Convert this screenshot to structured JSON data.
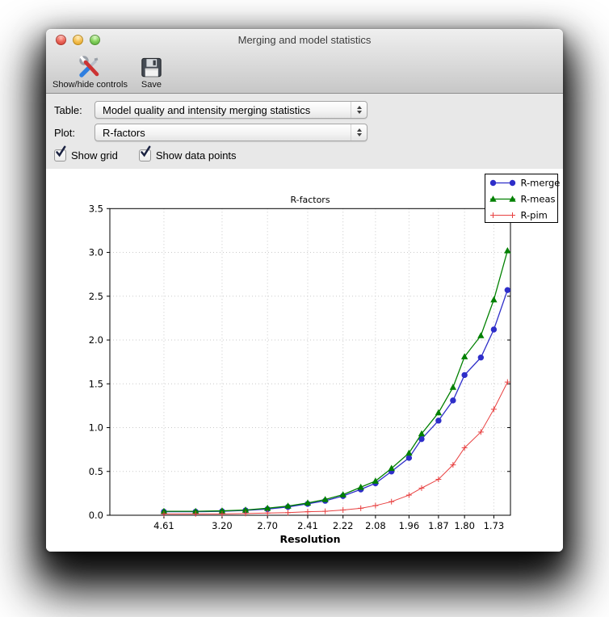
{
  "window": {
    "title": "Merging and model statistics"
  },
  "toolbar": {
    "buttons": [
      {
        "label": "Show/hide controls",
        "icon": "tools-icon"
      },
      {
        "label": "Save",
        "icon": "save-floppy-icon"
      }
    ]
  },
  "controls": {
    "table_label": "Table:",
    "table_value": "Model quality and intensity merging statistics",
    "plot_label": "Plot:",
    "plot_value": "R-factors",
    "checkboxes": [
      {
        "label": "Show grid",
        "checked": true
      },
      {
        "label": "Show data points",
        "checked": true
      }
    ]
  },
  "chart_data": {
    "type": "line",
    "title": "R-factors",
    "xlabel": "Resolution",
    "ylabel": "",
    "ylim": [
      0,
      3.5
    ],
    "yticks": [
      0.0,
      0.5,
      1.0,
      1.5,
      2.0,
      2.5,
      3.0,
      3.5
    ],
    "x_axis_scale": "1/d^2",
    "x_range_inv_d2": [
      0,
      0.3486
    ],
    "resolution_bins_d": [
      4.61,
      3.66,
      3.2,
      2.91,
      2.7,
      2.54,
      2.41,
      2.31,
      2.22,
      2.14,
      2.08,
      2.02,
      1.96,
      1.92,
      1.87,
      1.83,
      1.8,
      1.76,
      1.73,
      1.7
    ],
    "xtick_labels": [
      "4.61",
      "3.20",
      "2.70",
      "2.41",
      "2.22",
      "2.08",
      "1.96",
      "1.87",
      "1.80",
      "1.73"
    ],
    "grid": true,
    "show_data_points": true,
    "grid_color": "#c9c9c9",
    "legend_position": "upper right",
    "series": [
      {
        "name": "R-merge",
        "color": "#2e2ec9",
        "marker": "circle",
        "values": [
          0.04,
          0.04,
          0.045,
          0.055,
          0.07,
          0.095,
          0.13,
          0.165,
          0.22,
          0.295,
          0.365,
          0.5,
          0.655,
          0.87,
          1.08,
          1.31,
          1.6,
          1.8,
          2.12,
          2.57
        ]
      },
      {
        "name": "R-meas",
        "color": "#008000",
        "marker": "triangle",
        "values": [
          0.045,
          0.045,
          0.05,
          0.06,
          0.08,
          0.105,
          0.14,
          0.18,
          0.235,
          0.32,
          0.39,
          0.535,
          0.71,
          0.93,
          1.17,
          1.46,
          1.81,
          2.05,
          2.46,
          3.02
        ]
      },
      {
        "name": "R-pim",
        "color": "#e84040",
        "marker": "plus",
        "values": [
          0.015,
          0.015,
          0.015,
          0.02,
          0.025,
          0.03,
          0.04,
          0.045,
          0.06,
          0.08,
          0.11,
          0.155,
          0.23,
          0.31,
          0.41,
          0.575,
          0.77,
          0.95,
          1.21,
          1.52
        ]
      }
    ]
  }
}
